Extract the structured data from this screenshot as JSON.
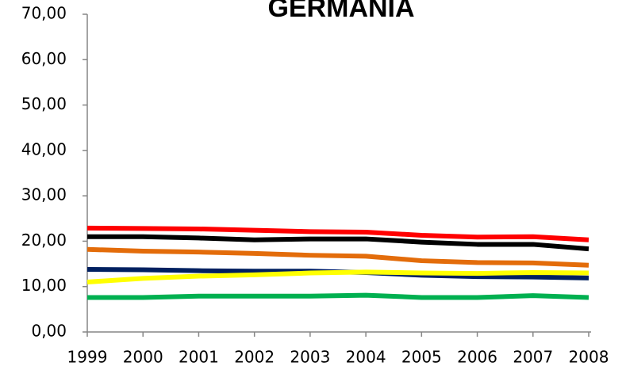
{
  "chart_data": {
    "type": "line",
    "title": "GERMANIA",
    "categories": [
      "1999",
      "2000",
      "2001",
      "2002",
      "2003",
      "2004",
      "2005",
      "2006",
      "2007",
      "2008"
    ],
    "ylim": [
      0,
      70
    ],
    "yticks": [
      {
        "value": 0,
        "label": "0,00"
      },
      {
        "value": 10,
        "label": "10,00"
      },
      {
        "value": 20,
        "label": "20,00"
      },
      {
        "value": 30,
        "label": "30,00"
      },
      {
        "value": 40,
        "label": "40,00"
      },
      {
        "value": 50,
        "label": "50,00"
      },
      {
        "value": 60,
        "label": "60,00"
      },
      {
        "value": 70,
        "label": "70,00"
      }
    ],
    "grid": false,
    "series": [
      {
        "color": "#ff0000",
        "values": [
          22.9,
          22.8,
          22.7,
          22.4,
          22.1,
          22.0,
          21.3,
          20.9,
          21.0,
          20.3
        ]
      },
      {
        "color": "#000000",
        "values": [
          21.0,
          21.0,
          20.7,
          20.3,
          20.5,
          20.5,
          19.8,
          19.3,
          19.3,
          18.3
        ]
      },
      {
        "color": "#e36c0a",
        "values": [
          18.2,
          17.8,
          17.6,
          17.3,
          16.9,
          16.7,
          15.7,
          15.3,
          15.2,
          14.7
        ]
      },
      {
        "color": "#002060",
        "values": [
          13.8,
          13.7,
          13.5,
          13.4,
          13.4,
          13.1,
          12.5,
          12.2,
          12.1,
          11.9
        ]
      },
      {
        "color": "#ffff00",
        "values": [
          11.0,
          11.8,
          12.3,
          12.6,
          13.0,
          13.2,
          13.0,
          12.9,
          13.1,
          13.0
        ]
      },
      {
        "color": "#00b050",
        "values": [
          7.6,
          7.6,
          7.9,
          7.9,
          7.9,
          8.1,
          7.6,
          7.6,
          8.0,
          7.6
        ]
      }
    ]
  }
}
